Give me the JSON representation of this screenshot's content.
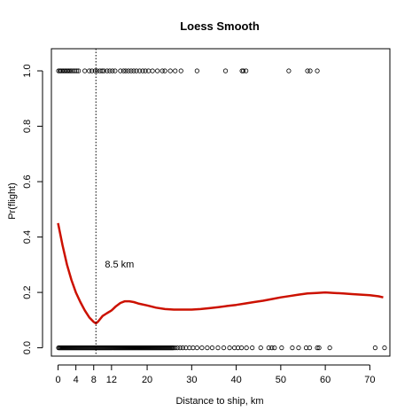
{
  "chart_data": {
    "type": "scatter",
    "title": "Loess Smooth",
    "xlabel": "Distance to ship, km",
    "ylabel": "Pr(flight)",
    "xlim": [
      -1.5,
      74.5
    ],
    "ylim": [
      -0.03,
      1.08
    ],
    "x_ticks": [
      0,
      4,
      8,
      12,
      20,
      30,
      40,
      50,
      60,
      70
    ],
    "y_ticks": [
      0.0,
      0.2,
      0.4,
      0.6,
      0.8,
      1.0
    ],
    "y_tick_labels": [
      "0.0",
      "0.2",
      "0.4",
      "0.6",
      "0.8",
      "1.0"
    ],
    "vline": {
      "x": 8.5,
      "style": "dotted"
    },
    "annotation": {
      "text": "8.5 km",
      "x": 10.5,
      "y": 0.29
    },
    "points_y1": [
      0.1,
      0.4,
      0.6,
      0.9,
      1.2,
      1.5,
      1.8,
      2.1,
      2.4,
      2.7,
      3.0,
      3.4,
      3.8,
      4.2,
      4.6,
      6.0,
      7.0,
      7.6,
      8.3,
      8.8,
      9.4,
      9.9,
      10.3,
      11.0,
      11.6,
      12.2,
      12.8,
      14.0,
      14.7,
      15.2,
      15.8,
      16.4,
      17.0,
      17.6,
      18.3,
      19.0,
      19.6,
      20.3,
      21.2,
      22.3,
      23.4,
      24.0,
      25.2,
      26.3,
      27.6,
      31.2,
      37.6,
      41.3,
      41.6,
      42.2,
      51.8,
      56.0,
      56.6,
      58.2
    ],
    "points_y0": [
      0.1,
      0.3,
      0.5,
      0.7,
      0.9,
      1.1,
      1.3,
      1.5,
      1.7,
      1.9,
      2.1,
      2.3,
      2.5,
      2.7,
      2.9,
      3.1,
      3.3,
      3.5,
      3.7,
      3.9,
      4.1,
      4.3,
      4.5,
      4.7,
      4.9,
      5.1,
      5.3,
      5.5,
      5.7,
      5.9,
      6.1,
      6.3,
      6.5,
      6.7,
      6.9,
      7.1,
      7.3,
      7.5,
      7.7,
      7.9,
      8.1,
      8.3,
      8.5,
      8.7,
      8.9,
      9.1,
      9.3,
      9.5,
      9.7,
      9.9,
      10.1,
      10.3,
      10.5,
      10.7,
      10.9,
      11.1,
      11.3,
      11.5,
      11.7,
      11.9,
      12.1,
      12.3,
      12.5,
      12.7,
      12.9,
      13.1,
      13.3,
      13.5,
      13.7,
      13.9,
      14.1,
      14.3,
      14.5,
      14.7,
      14.9,
      15.1,
      15.3,
      15.5,
      15.7,
      15.9,
      16.1,
      16.3,
      16.5,
      16.7,
      16.9,
      17.1,
      17.3,
      17.5,
      17.7,
      17.9,
      18.1,
      18.3,
      18.5,
      18.7,
      18.9,
      19.1,
      19.3,
      19.5,
      19.7,
      19.9,
      20.1,
      20.3,
      20.5,
      20.7,
      20.9,
      21.1,
      21.3,
      21.5,
      21.7,
      21.9,
      22.1,
      22.3,
      22.5,
      22.7,
      22.9,
      23.1,
      23.3,
      23.5,
      23.7,
      23.9,
      24.1,
      24.3,
      24.5,
      24.7,
      24.9,
      25.1,
      25.3,
      25.5,
      25.7,
      25.9,
      26.3,
      26.8,
      27.4,
      28.0,
      28.7,
      29.5,
      30.3,
      31.2,
      32.3,
      33.5,
      34.6,
      35.9,
      37.2,
      38.5,
      39.6,
      40.4,
      41.2,
      42.3,
      43.6,
      45.5,
      47.3,
      48.0,
      48.6,
      50.2,
      52.6,
      54.0,
      55.7,
      56.5,
      58.2,
      58.6,
      61.0,
      71.2,
      73.3
    ],
    "series": [
      {
        "name": "",
        "color": "#cc1100",
        "x": [
          0,
          1,
          2,
          3,
          4,
          5,
          6,
          7,
          8,
          8.5,
          9,
          10,
          11,
          12,
          13,
          14,
          15,
          16,
          17,
          18,
          20,
          22,
          24,
          26,
          28,
          30,
          32,
          34,
          36,
          38,
          40,
          42,
          44,
          46,
          48,
          50,
          52,
          54,
          56,
          58,
          60,
          62,
          64,
          66,
          68,
          70,
          72,
          73
        ],
        "y": [
          0.45,
          0.37,
          0.3,
          0.245,
          0.2,
          0.165,
          0.135,
          0.11,
          0.093,
          0.088,
          0.095,
          0.115,
          0.125,
          0.135,
          0.15,
          0.162,
          0.168,
          0.168,
          0.165,
          0.16,
          0.153,
          0.145,
          0.14,
          0.138,
          0.138,
          0.138,
          0.14,
          0.143,
          0.147,
          0.151,
          0.155,
          0.16,
          0.165,
          0.17,
          0.176,
          0.182,
          0.187,
          0.192,
          0.196,
          0.198,
          0.2,
          0.198,
          0.196,
          0.194,
          0.192,
          0.19,
          0.186,
          0.182
        ]
      }
    ],
    "grid": false,
    "legend": "none"
  }
}
